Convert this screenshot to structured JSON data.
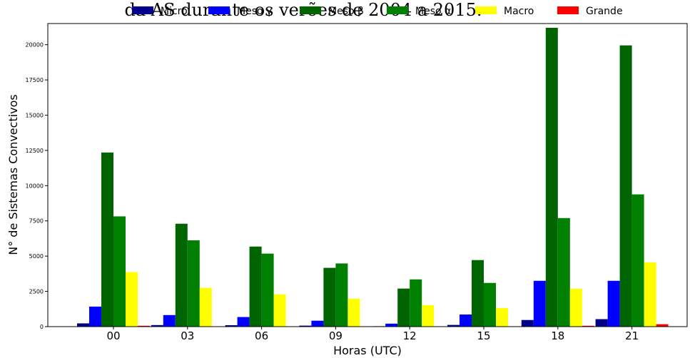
{
  "chart_data": {
    "type": "bar",
    "title": "da AS durante os verões de 2004 a 2015.",
    "xlabel": "Horas (UTC)",
    "ylabel": "N° de Sistemas Convectivos",
    "categories": [
      "00",
      "03",
      "06",
      "09",
      "12",
      "15",
      "18",
      "21"
    ],
    "ylim": [
      0,
      21500
    ],
    "yticks": [
      0,
      2500,
      5000,
      7500,
      10000,
      12500,
      15000,
      17500,
      20000
    ],
    "legend_position": "top",
    "grid": false,
    "series": [
      {
        "name": "Micro",
        "color": "#00008b",
        "values": [
          230,
          110,
          100,
          70,
          30,
          120,
          470,
          530
        ]
      },
      {
        "name": "Meso γ",
        "color": "#0000ff",
        "values": [
          1420,
          820,
          680,
          420,
          210,
          860,
          3250,
          3250
        ]
      },
      {
        "name": "Meso β",
        "color": "#006400",
        "values": [
          12350,
          7300,
          5680,
          4170,
          2700,
          4720,
          21200,
          19950
        ]
      },
      {
        "name": "Meso α",
        "color": "#008000",
        "values": [
          7820,
          6120,
          5180,
          4480,
          3350,
          3100,
          7700,
          9380
        ]
      },
      {
        "name": "Macro",
        "color": "#ffff00",
        "values": [
          3870,
          2750,
          2290,
          1980,
          1520,
          1310,
          2690,
          4560
        ]
      },
      {
        "name": "Grande",
        "color": "#ff0000",
        "values": [
          60,
          20,
          15,
          10,
          5,
          10,
          60,
          170
        ]
      }
    ]
  }
}
